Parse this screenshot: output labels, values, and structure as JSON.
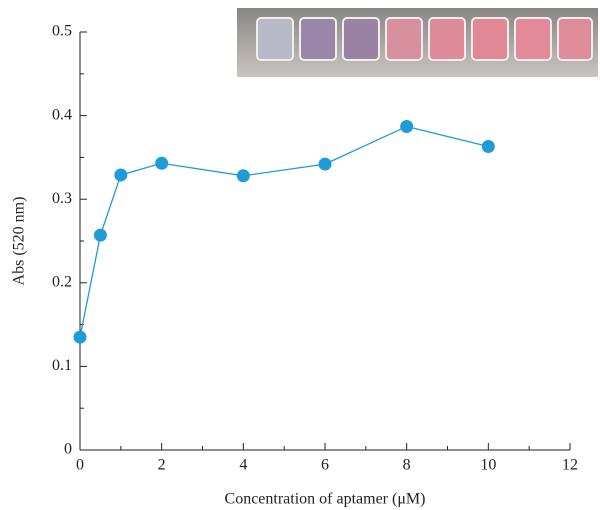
{
  "chart_data": {
    "type": "line",
    "x": [
      0,
      0.5,
      1,
      2,
      4,
      6,
      8,
      10
    ],
    "series": [
      {
        "color": "#1f9bd7",
        "values": [
          0.135,
          0.257,
          0.329,
          0.343,
          0.328,
          0.342,
          0.387,
          0.363
        ]
      }
    ],
    "xlabel": "Concentration of aptamer (μM)",
    "ylabel": "Abs (520 nm)",
    "xlim": [
      0,
      12
    ],
    "xticks": [
      0,
      2,
      4,
      6,
      8,
      10,
      12
    ],
    "xminorticks": [
      1,
      3,
      5,
      7,
      9,
      11
    ],
    "ylim": [
      0,
      0.5
    ],
    "yticks": [
      0,
      0.1,
      0.2,
      0.3,
      0.4,
      0.5
    ],
    "yminorticks": [
      0.05,
      0.15,
      0.25,
      0.35,
      0.45
    ]
  }
}
